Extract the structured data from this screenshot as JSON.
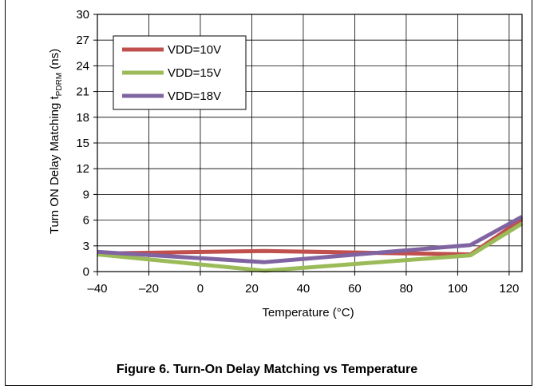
{
  "chart_data": {
    "type": "line",
    "xlabel": "Temperature (°C)",
    "ylabel": "Turn ON Delay Matching t",
    "ylabel_sub": "PDRM",
    "ylabel_unit": " (ns)",
    "xlim": [
      -40,
      125
    ],
    "ylim": [
      0,
      30
    ],
    "x_ticks": [
      -40,
      -20,
      0,
      20,
      40,
      60,
      80,
      100,
      120
    ],
    "x_tick_labels": [
      "–40",
      "–20",
      "0",
      "20",
      "40",
      "60",
      "80",
      "100",
      "120"
    ],
    "y_ticks": [
      0,
      3,
      6,
      9,
      12,
      15,
      18,
      21,
      24,
      27,
      30
    ],
    "grid": true,
    "legend_position": "top-left",
    "series": [
      {
        "name": "VDD=10V",
        "color": "#c0504d",
        "x": [
          -40,
          25,
          105,
          125
        ],
        "y": [
          2.1,
          2.4,
          2.0,
          6.1
        ]
      },
      {
        "name": "VDD=15V",
        "color": "#9bbb59",
        "x": [
          -40,
          25,
          105,
          125
        ],
        "y": [
          2.0,
          0.1,
          1.9,
          5.6
        ]
      },
      {
        "name": "VDD=18V",
        "color": "#8064a2",
        "x": [
          -40,
          25,
          105,
          125
        ],
        "y": [
          2.3,
          1.1,
          3.1,
          6.4
        ]
      }
    ]
  },
  "caption": "Figure 6. Turn-On Delay Matching vs Temperature"
}
